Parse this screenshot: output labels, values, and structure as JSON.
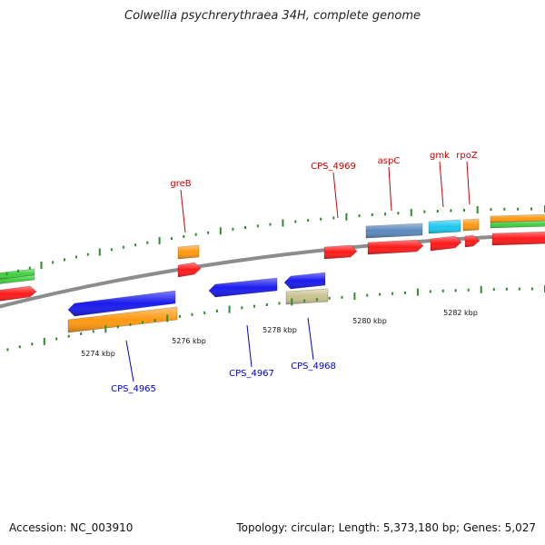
{
  "title": "Colwellia psychrerythraea 34H, complete genome",
  "footer": {
    "accession": "Accession: NC_003910",
    "topology": "Topology: circular; Length: 5,373,180 bp; Genes: 5,027"
  },
  "scale_labels": [
    "5274 kbp",
    "5276 kbp",
    "5278 kbp",
    "5280 kbp",
    "5282 kbp"
  ],
  "gene_labels": {
    "top": [
      "greB",
      "CPS_4969",
      "aspC",
      "gmk",
      "rpoZ"
    ],
    "bottom": [
      "CPS_4965",
      "CPS_4967",
      "CPS_4968"
    ]
  },
  "colors": {
    "backbone": "#8c8c8c",
    "tick": "#2e8b2e",
    "red": "#ff1a1a",
    "orange": "#ff9910",
    "green": "#3fcf3f",
    "blue": "#1a1aee",
    "steelblue": "#5a88bc",
    "cyan": "#1ec8f0",
    "khaki": "#c8c290",
    "label_top": "#cc0000",
    "label_bottom": "#0000cc"
  }
}
